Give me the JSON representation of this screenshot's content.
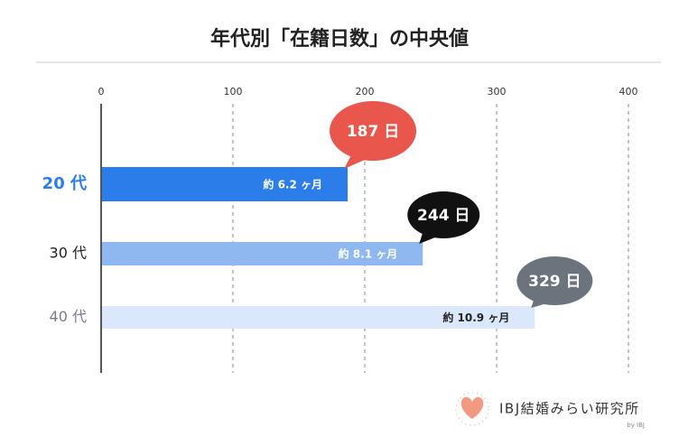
{
  "chart_data": {
    "type": "bar",
    "orientation": "horizontal",
    "title": "年代別「在籍日数」の中央値",
    "categories": [
      "20 代",
      "30 代",
      "40 代"
    ],
    "values": [
      187,
      244,
      329
    ],
    "value_labels": [
      "187 日",
      "244 日",
      "329 日"
    ],
    "month_labels": [
      "約 6.2 ヶ月",
      "約 8.1 ヶ月",
      "約 10.9 ヶ月"
    ],
    "colors": [
      "#2b7de9",
      "#8fb8f0",
      "#dbe8fb"
    ],
    "month_label_colors": [
      "#ffffff",
      "#ffffff",
      "#222222"
    ],
    "category_colors": [
      "#2b7de9",
      "#222222",
      "#777e88"
    ],
    "bubble_colors": [
      "#e8564c",
      "#111111",
      "#6b737d"
    ],
    "xlim": [
      0,
      400
    ],
    "xticks": [
      0,
      100,
      200,
      300,
      400
    ],
    "grid": true
  },
  "logo": {
    "name": "IBJ結婚みらい研究所",
    "by": "by IBJ"
  }
}
